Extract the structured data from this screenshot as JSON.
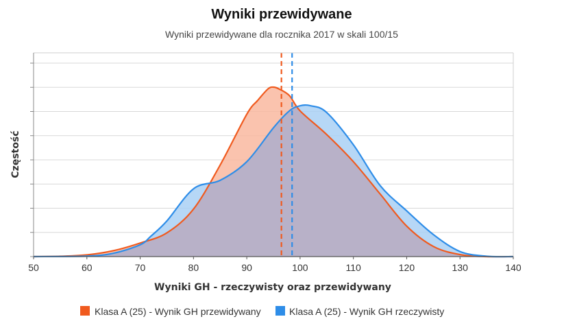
{
  "chart_data": {
    "type": "area",
    "title": "Wyniki przewidywane",
    "subtitle": "Wyniki przewidywane dla rocznika 2017 w skali 100/15",
    "xlabel": "Wyniki GH - rzeczywisty oraz przewidywany",
    "ylabel": "Częstość",
    "xlim": [
      50,
      140
    ],
    "ylim": [
      0,
      1
    ],
    "x_ticks": [
      50,
      60,
      70,
      80,
      90,
      100,
      110,
      120,
      130,
      140
    ],
    "grid": true,
    "legend_position": "bottom",
    "series": [
      {
        "name": "Klasa A (25) - Wynik GH przewidywany",
        "color": "#f05a1e",
        "fill": "#f9b9a0",
        "mean": 96.5,
        "x": [
          50,
          55,
          60,
          65,
          70,
          75,
          80,
          85,
          90,
          92,
          94,
          95,
          96,
          98,
          100,
          105,
          110,
          115,
          120,
          125,
          130,
          135,
          140
        ],
        "y": [
          0.0,
          0.002,
          0.01,
          0.035,
          0.08,
          0.14,
          0.28,
          0.54,
          0.84,
          0.92,
          0.99,
          1.0,
          0.99,
          0.95,
          0.86,
          0.72,
          0.56,
          0.37,
          0.18,
          0.06,
          0.012,
          0.0,
          0.0
        ]
      },
      {
        "name": "Klasa A (25) - Wynik GH rzeczywisty",
        "color": "#2e8de8",
        "fill": "#a9d0f5",
        "mean": 98.5,
        "x": [
          50,
          60,
          65,
          70,
          72,
          75,
          80,
          85,
          90,
          95,
          98,
          100,
          102,
          105,
          110,
          115,
          120,
          125,
          130,
          135,
          140
        ],
        "y": [
          0.0,
          0.003,
          0.02,
          0.07,
          0.12,
          0.21,
          0.4,
          0.45,
          0.56,
          0.76,
          0.86,
          0.89,
          0.89,
          0.85,
          0.66,
          0.42,
          0.27,
          0.13,
          0.03,
          0.002,
          0.0
        ]
      }
    ]
  }
}
